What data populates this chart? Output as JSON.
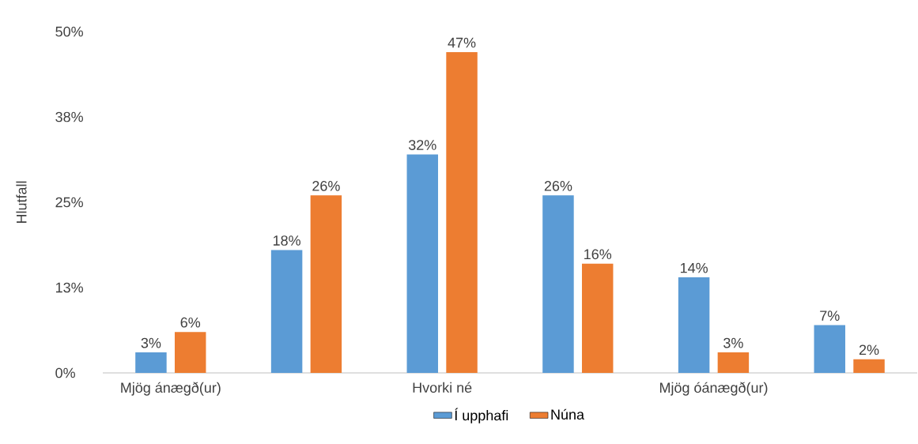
{
  "chart_data": {
    "type": "bar",
    "ylabel": "Hlutfall",
    "categories": [
      "Mjög ánægð(ur)",
      null,
      "Hvorki né",
      null,
      "Mjög óánægð(ur)",
      null
    ],
    "series": [
      {
        "name": "Í upphafi",
        "color": "#5b9bd5",
        "values": [
          3,
          18,
          32,
          26,
          14,
          7
        ],
        "value_labels": [
          "3%",
          "18%",
          "32%",
          "26%",
          "14%",
          "7%"
        ]
      },
      {
        "name": "Núna",
        "color": "#ed7d31",
        "values": [
          6,
          26,
          47,
          16,
          3,
          2
        ],
        "value_labels": [
          "6%",
          "26%",
          "47%",
          "16%",
          "3%",
          "2%"
        ]
      }
    ],
    "ylim": [
      0,
      50
    ],
    "yticks": [
      {
        "value": 0,
        "label": "0%"
      },
      {
        "value": 12.5,
        "label": "13%"
      },
      {
        "value": 25,
        "label": "25%"
      },
      {
        "value": 37.5,
        "label": "38%"
      },
      {
        "value": 50,
        "label": "50%"
      }
    ],
    "legend": "bottom"
  }
}
